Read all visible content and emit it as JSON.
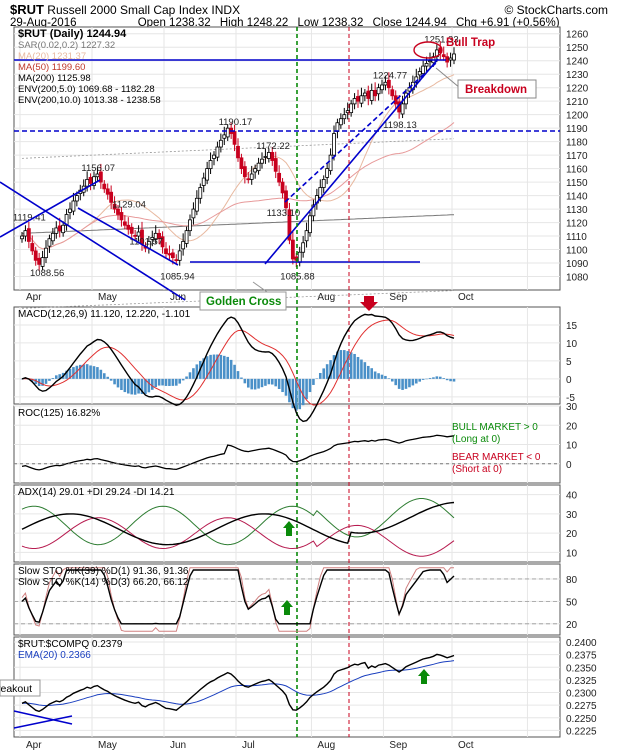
{
  "header": {
    "symbol": "$RUT",
    "name": "Russell 2000 Small Cap Index",
    "exchange": "INDX",
    "brand": "© StockCharts.com",
    "date": "29-Aug-2016",
    "open_label": "Open",
    "open": "1238.32",
    "high_label": "High",
    "high": "1248.22",
    "low_label": "Low",
    "low": "1238.32",
    "close_label": "Close",
    "close": "1244.94",
    "chg_label": "Chg",
    "chg": "+6.91 (+0.56%)"
  },
  "colors": {
    "up": "#000000",
    "down": "#c8001e",
    "trend": "#0000cc",
    "annot": "#c8001e",
    "green": "#0a8a0a",
    "ma50": "#c0392b",
    "ma200": "#000000",
    "hist": "#4a90c8"
  },
  "chart_data": [
    {
      "type": "candlestick",
      "panel": "price",
      "legend": [
        "$RUT (Daily) 1244.94",
        "SAR(0.02,0.2) 1227.32",
        "MA(20) 1231.37",
        "MA(50) 1199.60",
        "MA(200) 1125.98",
        "ENV(200,5.0) 1069.68 - 1182.28",
        "ENV(200,10.0) 1013.38 - 1238.58"
      ],
      "ylim": [
        1070,
        1265
      ],
      "y_ticks": [
        1080,
        1090,
        1100,
        1110,
        1120,
        1130,
        1140,
        1150,
        1160,
        1170,
        1180,
        1190,
        1200,
        1210,
        1220,
        1230,
        1240,
        1250,
        1260
      ],
      "x_labels": [
        "Apr",
        "May",
        "Jun",
        "Jul",
        "Aug",
        "Sep",
        "Oct"
      ],
      "closes": [
        1110,
        1114,
        1106,
        1099,
        1092,
        1089,
        1094,
        1101,
        1108,
        1112,
        1116,
        1114,
        1118,
        1126,
        1130,
        1136,
        1140,
        1144,
        1147,
        1152,
        1149,
        1154,
        1156,
        1150,
        1145,
        1141,
        1135,
        1130,
        1126,
        1122,
        1118,
        1115,
        1112,
        1110,
        1113,
        1104,
        1101,
        1106,
        1109,
        1112,
        1108,
        1102,
        1097,
        1096,
        1094,
        1092,
        1099,
        1106,
        1114,
        1122,
        1130,
        1138,
        1146,
        1153,
        1160,
        1166,
        1170,
        1176,
        1181,
        1185,
        1190,
        1186,
        1178,
        1168,
        1160,
        1154,
        1152,
        1156,
        1160,
        1164,
        1167,
        1169,
        1172,
        1166,
        1158,
        1150,
        1142,
        1131,
        1107,
        1093,
        1092,
        1098,
        1105,
        1114,
        1125,
        1133,
        1140,
        1146,
        1152,
        1160,
        1170,
        1186,
        1194,
        1197,
        1200,
        1203,
        1208,
        1212,
        1210,
        1214,
        1216,
        1212,
        1218,
        1214,
        1220,
        1222,
        1224,
        1220,
        1214,
        1208,
        1202,
        1208,
        1216,
        1220,
        1224,
        1228,
        1232,
        1236,
        1238,
        1240,
        1243,
        1248,
        1246,
        1243,
        1239,
        1242,
        1245
      ],
      "annotations": [
        {
          "text": "1119.41",
          "i": 2
        },
        {
          "text": "1088.56",
          "i": 7
        },
        {
          "text": "1156.07",
          "i": 22
        },
        {
          "text": "1129.04",
          "i": 31
        },
        {
          "text": "1101.57",
          "i": 36
        },
        {
          "text": "1085.94",
          "i": 45
        },
        {
          "text": "1190.17",
          "i": 62
        },
        {
          "text": "1172.22",
          "i": 73
        },
        {
          "text": "1133.10",
          "i": 76
        },
        {
          "text": "1085.88",
          "i": 80
        },
        {
          "text": "1224.77",
          "i": 107
        },
        {
          "text": "1198.13",
          "i": 110
        },
        {
          "text": "1251.33",
          "i": 122
        }
      ],
      "callouts": {
        "bull_trap": "Bull Trap",
        "breakdown": "Breakdown",
        "golden_cross": "Golden Cross"
      }
    },
    {
      "type": "line",
      "panel": "macd",
      "title": "MACD(12,26,9) 11.120, 12.220, -1.101",
      "ylim": [
        -7,
        20
      ],
      "y_ticks": [
        15,
        10,
        5,
        0,
        -5
      ]
    },
    {
      "type": "line",
      "panel": "roc",
      "title": "ROC(125) 16.82%",
      "ylim": [
        -10,
        30
      ],
      "y_ticks": [
        30,
        20,
        10,
        0
      ],
      "notes": [
        "BULL MARKET > 0",
        "(Long at 0)",
        "BEAR MARKET < 0",
        "(Short at 0)"
      ]
    },
    {
      "type": "line",
      "panel": "adx",
      "title": "ADX(14) 29.01 +DI 29.24 -DI 14.21",
      "ylim": [
        5,
        45
      ],
      "y_ticks": [
        40,
        30,
        20,
        10
      ]
    },
    {
      "type": "line",
      "panel": "sto",
      "title": "Slow STO %K(39) %D(1) 91.36, 91.36",
      "title2": "Slow STO %K(14) %D(3) 66.20, 66.12",
      "ylim": [
        5,
        100
      ],
      "y_ticks": [
        80,
        50,
        20
      ]
    },
    {
      "type": "line",
      "panel": "ratio",
      "title": "$RUT:$COMPQ 0.2379",
      "title2": "EMA(20) 0.2366",
      "ylim": [
        0.2212,
        0.241
      ],
      "y_ticks": [
        "0.2400",
        "0.2375",
        "0.2350",
        "0.2325",
        "0.2300",
        "0.2275",
        "0.2250",
        "0.2225"
      ],
      "callout": "Breakout"
    }
  ]
}
